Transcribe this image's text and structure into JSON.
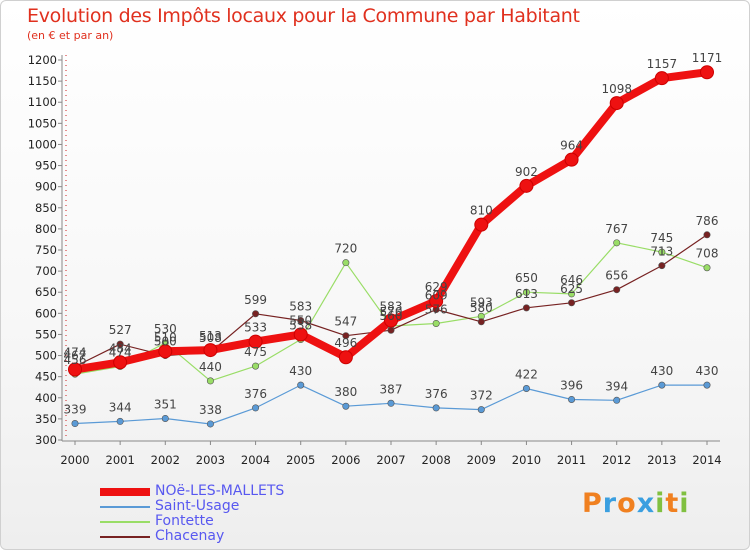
{
  "title": "Evolution des Impôts locaux pour la Commune par Habitant",
  "subtitle": "(en € et par an)",
  "logo": {
    "letters": [
      "P",
      "r",
      "o",
      "x",
      "i",
      "t",
      "i"
    ],
    "colors": [
      "#f08020",
      "#3a9fe0",
      "#f08020",
      "#3a9fe0",
      "#80c040",
      "#f08020",
      "#80c040"
    ]
  },
  "chart_data": {
    "type": "line",
    "x": [
      "2000",
      "2001",
      "2002",
      "2003",
      "2004",
      "2005",
      "2006",
      "2007",
      "2008",
      "2009",
      "2010",
      "2011",
      "2012",
      "2013",
      "2014"
    ],
    "ylim": [
      300,
      1200
    ],
    "yticks": [
      300,
      350,
      400,
      450,
      500,
      550,
      600,
      650,
      700,
      750,
      800,
      850,
      900,
      950,
      1000,
      1050,
      1100,
      1150,
      1200
    ],
    "grid": false,
    "legend_position": "bottom-left",
    "series": [
      {
        "name": "NOë-LES-MALLETS",
        "color": "#ee1111",
        "width": 8,
        "values": [
          467,
          484,
          510,
          513,
          533,
          550,
          496,
          583,
          629,
          810,
          902,
          964,
          1098,
          1157,
          1171
        ],
        "labels": [
          "467",
          "484",
          "510",
          "513",
          "533",
          "550",
          "496",
          "583",
          "629",
          "810",
          "902",
          "964",
          "1098",
          "1157",
          "1171"
        ]
      },
      {
        "name": "Saint-Usage",
        "color": "#5a9ad6",
        "width": 1.2,
        "values": [
          339,
          344,
          351,
          338,
          376,
          430,
          380,
          387,
          376,
          372,
          422,
          396,
          394,
          430,
          430
        ],
        "labels": [
          "339",
          "344",
          "351",
          "338",
          "376",
          "430",
          "380",
          "387",
          "376",
          "372",
          "422",
          "396",
          "394",
          "430",
          "430"
        ]
      },
      {
        "name": "Fontette",
        "color": "#99dd66",
        "width": 1.2,
        "values": [
          456,
          474,
          530,
          440,
          475,
          538,
          720,
          570,
          576,
          593,
          650,
          646,
          767,
          745,
          708
        ],
        "labels": [
          "456",
          "474",
          "530",
          "440",
          "475",
          "538",
          "720",
          "570",
          "576",
          "593",
          "650",
          "646",
          "767",
          "745",
          "708"
        ]
      },
      {
        "name": "Chacenay",
        "color": "#772222",
        "width": 1.2,
        "values": [
          474,
          527,
          500,
          508,
          599,
          583,
          547,
          560,
          609,
          580,
          613,
          625,
          656,
          713,
          786
        ],
        "labels": [
          "474",
          "527",
          "500",
          "508",
          "599",
          "583",
          "547",
          "560",
          "609",
          "580",
          "613",
          "625",
          "656",
          "713",
          "786"
        ]
      }
    ]
  }
}
